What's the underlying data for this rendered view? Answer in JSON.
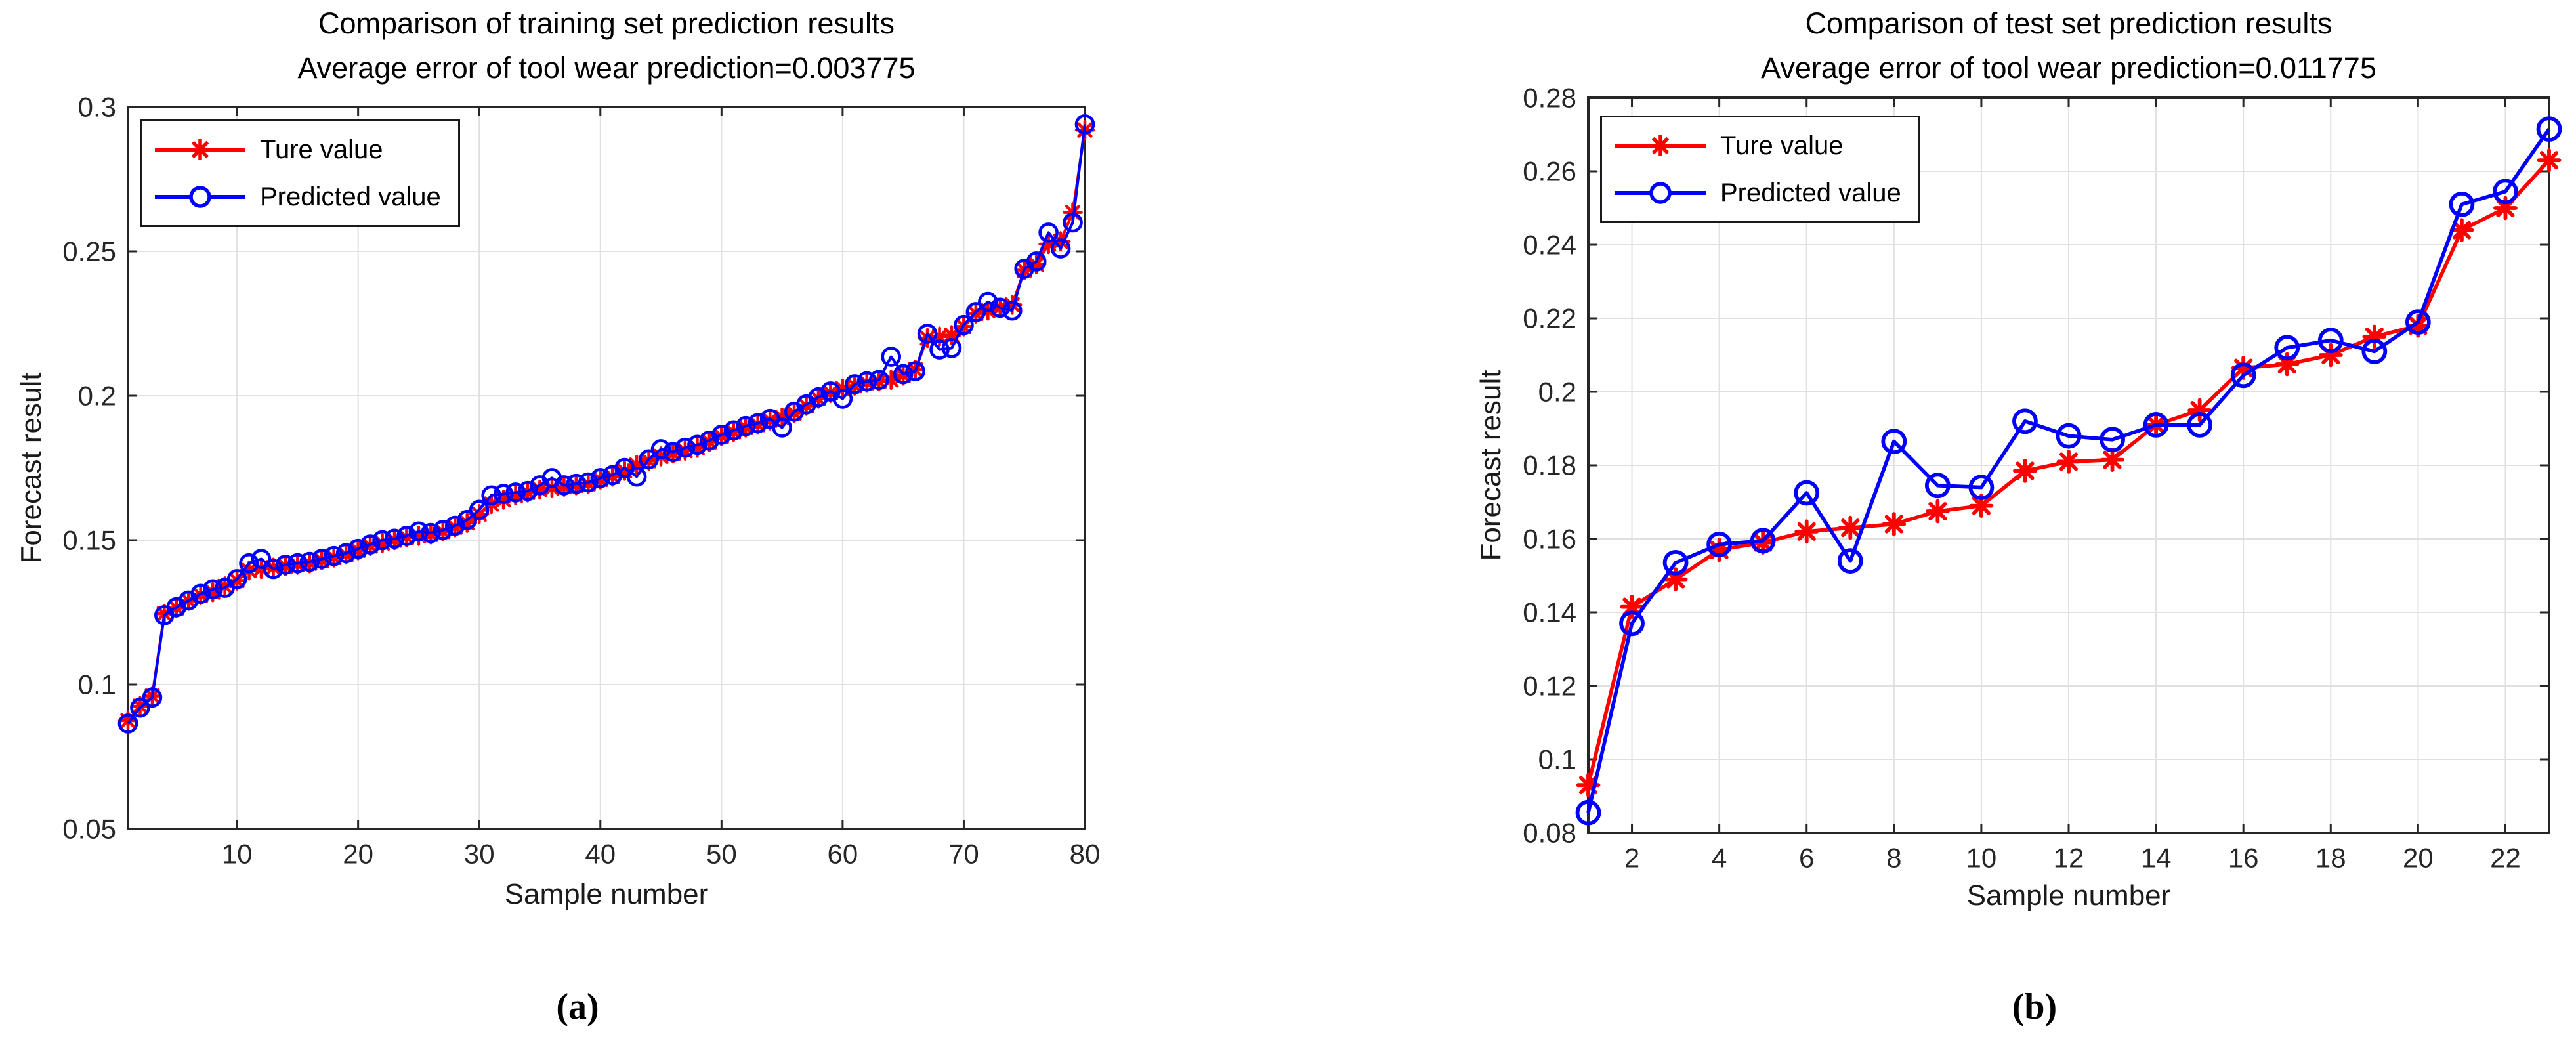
{
  "figure": {
    "background": "#ffffff",
    "true_color": "#ff0000",
    "predicted_color": "#0000ff",
    "axis_color": "#262626",
    "grid_color": "#e0e0e0"
  },
  "captions": {
    "left": "(a)",
    "right": "(b)"
  },
  "chart_data": [
    {
      "type": "line",
      "title": "Comparison of training set prediction results",
      "subtitle": "Average error of tool wear prediction=0.003775",
      "xlabel": "Sample number",
      "ylabel": "Forecast result",
      "xlim": [
        1,
        80
      ],
      "ylim": [
        0.05,
        0.3
      ],
      "xticks": [
        10,
        20,
        30,
        40,
        50,
        60,
        70,
        80
      ],
      "xticklabels": [
        "10",
        "20",
        "30",
        "40",
        "50",
        "60",
        "70",
        "80"
      ],
      "yticks": [
        0.05,
        0.1,
        0.15,
        0.2,
        0.25,
        0.3
      ],
      "yticklabels": [
        "0.05",
        "0.1",
        "0.15",
        "0.2",
        "0.25",
        "0.3"
      ],
      "grid": true,
      "legend_position": "top-left",
      "x": [
        1,
        2,
        3,
        4,
        5,
        6,
        7,
        8,
        9,
        10,
        11,
        12,
        13,
        14,
        15,
        16,
        17,
        18,
        19,
        20,
        21,
        22,
        23,
        24,
        25,
        26,
        27,
        28,
        29,
        30,
        31,
        32,
        33,
        34,
        35,
        36,
        37,
        38,
        39,
        40,
        41,
        42,
        43,
        44,
        45,
        46,
        47,
        48,
        49,
        50,
        51,
        52,
        53,
        54,
        55,
        56,
        57,
        58,
        59,
        60,
        61,
        62,
        63,
        64,
        65,
        66,
        67,
        68,
        69,
        70,
        71,
        72,
        73,
        74,
        75,
        76,
        77,
        78,
        79,
        80
      ],
      "series": [
        {
          "name": "Ture value",
          "color": "#ff0000",
          "marker": "asterisk",
          "values": [
            0.0875,
            0.0925,
            0.096,
            0.1245,
            0.1265,
            0.129,
            0.131,
            0.132,
            0.134,
            0.136,
            0.1395,
            0.14,
            0.1405,
            0.141,
            0.1415,
            0.142,
            0.143,
            0.144,
            0.145,
            0.1465,
            0.148,
            0.149,
            0.15,
            0.151,
            0.1515,
            0.152,
            0.153,
            0.1545,
            0.156,
            0.159,
            0.1625,
            0.164,
            0.1655,
            0.1665,
            0.1675,
            0.168,
            0.1685,
            0.169,
            0.1695,
            0.171,
            0.172,
            0.174,
            0.176,
            0.1775,
            0.179,
            0.18,
            0.181,
            0.182,
            0.184,
            0.186,
            0.1875,
            0.189,
            0.19,
            0.1915,
            0.1925,
            0.194,
            0.1965,
            0.199,
            0.201,
            0.2025,
            0.2035,
            0.2045,
            0.205,
            0.2055,
            0.207,
            0.209,
            0.22,
            0.2205,
            0.221,
            0.224,
            0.2285,
            0.2295,
            0.2305,
            0.2315,
            0.2435,
            0.2455,
            0.2525,
            0.2535,
            0.2635,
            0.292
          ]
        },
        {
          "name": "Predicted value",
          "color": "#0000ff",
          "marker": "circle",
          "values": [
            0.0865,
            0.092,
            0.0955,
            0.124,
            0.1268,
            0.1291,
            0.1314,
            0.133,
            0.1335,
            0.1365,
            0.142,
            0.1435,
            0.14,
            0.1415,
            0.142,
            0.1425,
            0.1435,
            0.1445,
            0.1455,
            0.147,
            0.1485,
            0.15,
            0.1505,
            0.1515,
            0.153,
            0.1525,
            0.1535,
            0.155,
            0.157,
            0.1605,
            0.1655,
            0.166,
            0.1665,
            0.167,
            0.169,
            0.1715,
            0.169,
            0.1695,
            0.17,
            0.1715,
            0.1725,
            0.175,
            0.172,
            0.178,
            0.1815,
            0.1805,
            0.182,
            0.183,
            0.1845,
            0.1865,
            0.188,
            0.1895,
            0.1905,
            0.192,
            0.189,
            0.1945,
            0.197,
            0.1995,
            0.2015,
            0.199,
            0.204,
            0.205,
            0.2055,
            0.2135,
            0.2075,
            0.2085,
            0.2215,
            0.216,
            0.2165,
            0.2245,
            0.229,
            0.2325,
            0.2305,
            0.2295,
            0.244,
            0.2465,
            0.2565,
            0.251,
            0.26,
            0.294
          ]
        }
      ]
    },
    {
      "type": "line",
      "title": "Comparison of test set prediction results",
      "subtitle": "Average error of tool wear prediction=0.011775",
      "xlabel": "Sample number",
      "ylabel": "Forecast result",
      "xlim": [
        1,
        23
      ],
      "ylim": [
        0.08,
        0.28
      ],
      "xticks": [
        2,
        4,
        6,
        8,
        10,
        12,
        14,
        16,
        18,
        20,
        22
      ],
      "xticklabels": [
        "2",
        "4",
        "6",
        "8",
        "10",
        "12",
        "14",
        "16",
        "18",
        "20",
        "22"
      ],
      "yticks": [
        0.08,
        0.1,
        0.12,
        0.14,
        0.16,
        0.18,
        0.2,
        0.22,
        0.24,
        0.26,
        0.28
      ],
      "yticklabels": [
        "0.08",
        "0.1",
        "0.12",
        "0.14",
        "0.16",
        "0.18",
        "0.2",
        "0.22",
        "0.24",
        "0.26",
        "0.28"
      ],
      "grid": true,
      "legend_position": "top-left",
      "x": [
        1,
        2,
        3,
        4,
        5,
        6,
        7,
        8,
        9,
        10,
        11,
        12,
        13,
        14,
        15,
        16,
        17,
        18,
        19,
        20,
        21,
        22,
        23
      ],
      "series": [
        {
          "name": "Ture value",
          "color": "#ff0000",
          "marker": "asterisk",
          "values": [
            0.093,
            0.1415,
            0.149,
            0.157,
            0.159,
            0.162,
            0.163,
            0.164,
            0.1675,
            0.169,
            0.1785,
            0.181,
            0.1815,
            0.191,
            0.195,
            0.2065,
            0.2075,
            0.21,
            0.215,
            0.218,
            0.244,
            0.25,
            0.263
          ]
        },
        {
          "name": "Predicted value",
          "color": "#0000ff",
          "marker": "circle",
          "values": [
            0.0855,
            0.137,
            0.1535,
            0.1585,
            0.1595,
            0.1725,
            0.154,
            0.1865,
            0.1745,
            0.174,
            0.192,
            0.188,
            0.187,
            0.191,
            0.191,
            0.2045,
            0.212,
            0.214,
            0.211,
            0.219,
            0.251,
            0.2545,
            0.2715
          ]
        }
      ]
    }
  ]
}
